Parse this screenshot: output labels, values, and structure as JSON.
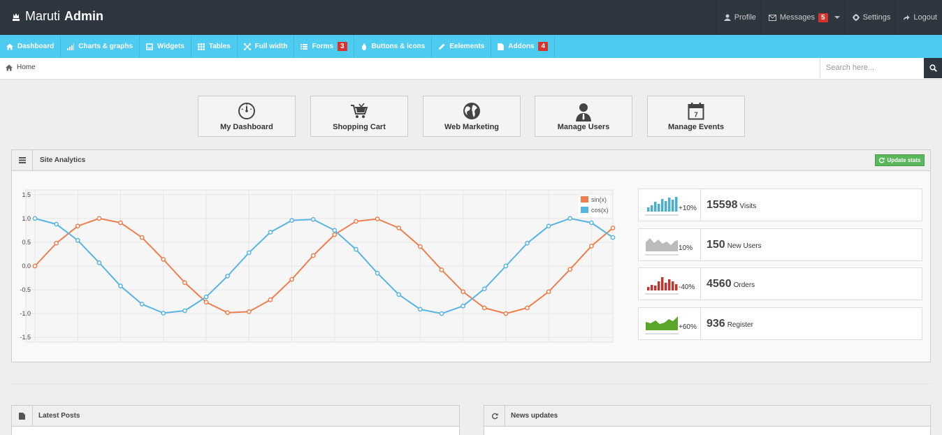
{
  "brand": {
    "name_light": "Maruti",
    "name_bold": "Admin"
  },
  "topnav": [
    {
      "label": "Profile",
      "icon": "user-icon"
    },
    {
      "label": "Messages",
      "icon": "envelope-icon",
      "badge": "5"
    },
    {
      "label": "Settings",
      "icon": "gear-icon"
    },
    {
      "label": "Logout",
      "icon": "share-icon"
    }
  ],
  "menu": [
    {
      "label": "Dashboard",
      "icon": "home-icon"
    },
    {
      "label": "Charts & graphs",
      "icon": "signal-icon"
    },
    {
      "label": "Widgets",
      "icon": "inbox-icon"
    },
    {
      "label": "Tables",
      "icon": "th-icon"
    },
    {
      "label": "Full width",
      "icon": "fullscreen-icon"
    },
    {
      "label": "Forms",
      "icon": "list-icon",
      "badge": "3"
    },
    {
      "label": "Buttons & icons",
      "icon": "tint-icon"
    },
    {
      "label": "Eelements",
      "icon": "pencil-icon"
    },
    {
      "label": "Addons",
      "icon": "file-icon",
      "badge": "4"
    }
  ],
  "breadcrumb": {
    "home": "Home"
  },
  "search": {
    "placeholder": "Search here..."
  },
  "quick_actions": [
    {
      "label": "My Dashboard",
      "icon": "dashboard-icon"
    },
    {
      "label": "Shopping Cart",
      "icon": "cart-icon"
    },
    {
      "label": "Web Marketing",
      "icon": "globe-icon"
    },
    {
      "label": "Manage Users",
      "icon": "user-icon"
    },
    {
      "label": "Manage Events",
      "icon": "calendar-icon"
    }
  ],
  "calendar_day": "7",
  "analytics": {
    "title": "Site Analytics",
    "update_label": "Update stats"
  },
  "stats": [
    {
      "percent": "+10%",
      "value": "15598",
      "name": "Visits",
      "color": "#49afcd"
    },
    {
      "percent": "10%",
      "value": "150",
      "name": "New Users",
      "color": "#cccccc"
    },
    {
      "percent": "-40%",
      "value": "4560",
      "name": "Orders",
      "color": "#bd362f"
    },
    {
      "percent": "+60%",
      "value": "936",
      "name": "Register",
      "color": "#5ba52d"
    }
  ],
  "panels": {
    "latest_posts": "Latest Posts",
    "news_updates": "News updates"
  },
  "chart_data": {
    "type": "line",
    "x": [
      0,
      0.5,
      1,
      1.5,
      2,
      2.5,
      3,
      3.5,
      4,
      4.5,
      5,
      5.5,
      6,
      6.5,
      7,
      7.5,
      8,
      8.5,
      9,
      9.5,
      10,
      10.5,
      11,
      11.5,
      12,
      12.5,
      13,
      13.5
    ],
    "series": [
      {
        "name": "sin(x)",
        "color": "#ed7f4f",
        "values": [
          0.0,
          0.48,
          0.84,
          1.0,
          0.91,
          0.6,
          0.14,
          -0.35,
          -0.76,
          -0.98,
          -0.96,
          -0.71,
          -0.28,
          0.22,
          0.66,
          0.94,
          0.99,
          0.8,
          0.41,
          -0.08,
          -0.54,
          -0.88,
          -1.0,
          -0.88,
          -0.54,
          -0.07,
          0.42,
          0.8
        ]
      },
      {
        "name": "cos(x)",
        "color": "#58b5e1",
        "values": [
          1.0,
          0.88,
          0.54,
          0.07,
          -0.42,
          -0.8,
          -0.99,
          -0.94,
          -0.65,
          -0.21,
          0.28,
          0.71,
          0.96,
          0.98,
          0.75,
          0.35,
          -0.15,
          -0.6,
          -0.91,
          -1.0,
          -0.84,
          -0.48,
          0.0,
          0.48,
          0.84,
          1.0,
          0.91,
          0.6
        ]
      }
    ],
    "xlim": [
      0,
      13.5
    ],
    "ylim": [
      -1.6,
      1.6
    ],
    "xticks": [
      0,
      1,
      2,
      3,
      4,
      5,
      6,
      7,
      8,
      9,
      10,
      11,
      12,
      13
    ],
    "yticks": [
      1.5,
      1.0,
      0.5,
      0.0,
      -0.5,
      -1.0,
      -1.5
    ],
    "ytick_labels": [
      "1.5",
      "1.0",
      "0.5",
      "0.0",
      "-0.5",
      "-1.0",
      "-1.5"
    ],
    "grid": true,
    "legend_position": "top-right"
  }
}
